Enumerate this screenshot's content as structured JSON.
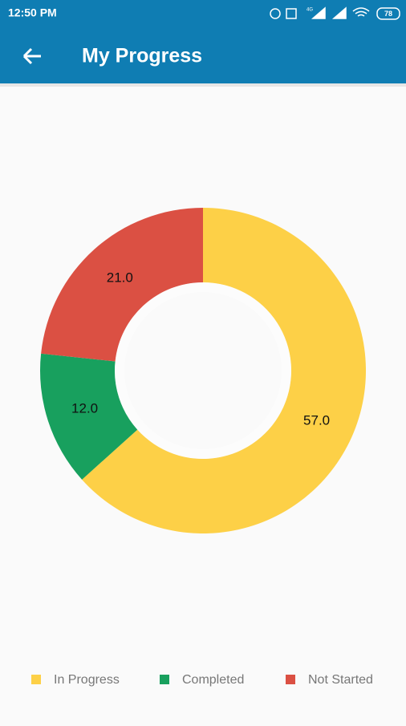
{
  "status_bar": {
    "time": "12:50 PM",
    "network": "4G",
    "battery": "78"
  },
  "header": {
    "title": "My Progress"
  },
  "chart_data": {
    "type": "pie",
    "categories": [
      "In Progress",
      "Completed",
      "Not Started"
    ],
    "values": [
      57,
      12,
      21
    ],
    "value_labels": [
      "57.0",
      "12.0",
      "21.0"
    ],
    "colors": [
      "#fdd047",
      "#18a05e",
      "#db5043"
    ],
    "donut": true,
    "legend": "bottom"
  }
}
